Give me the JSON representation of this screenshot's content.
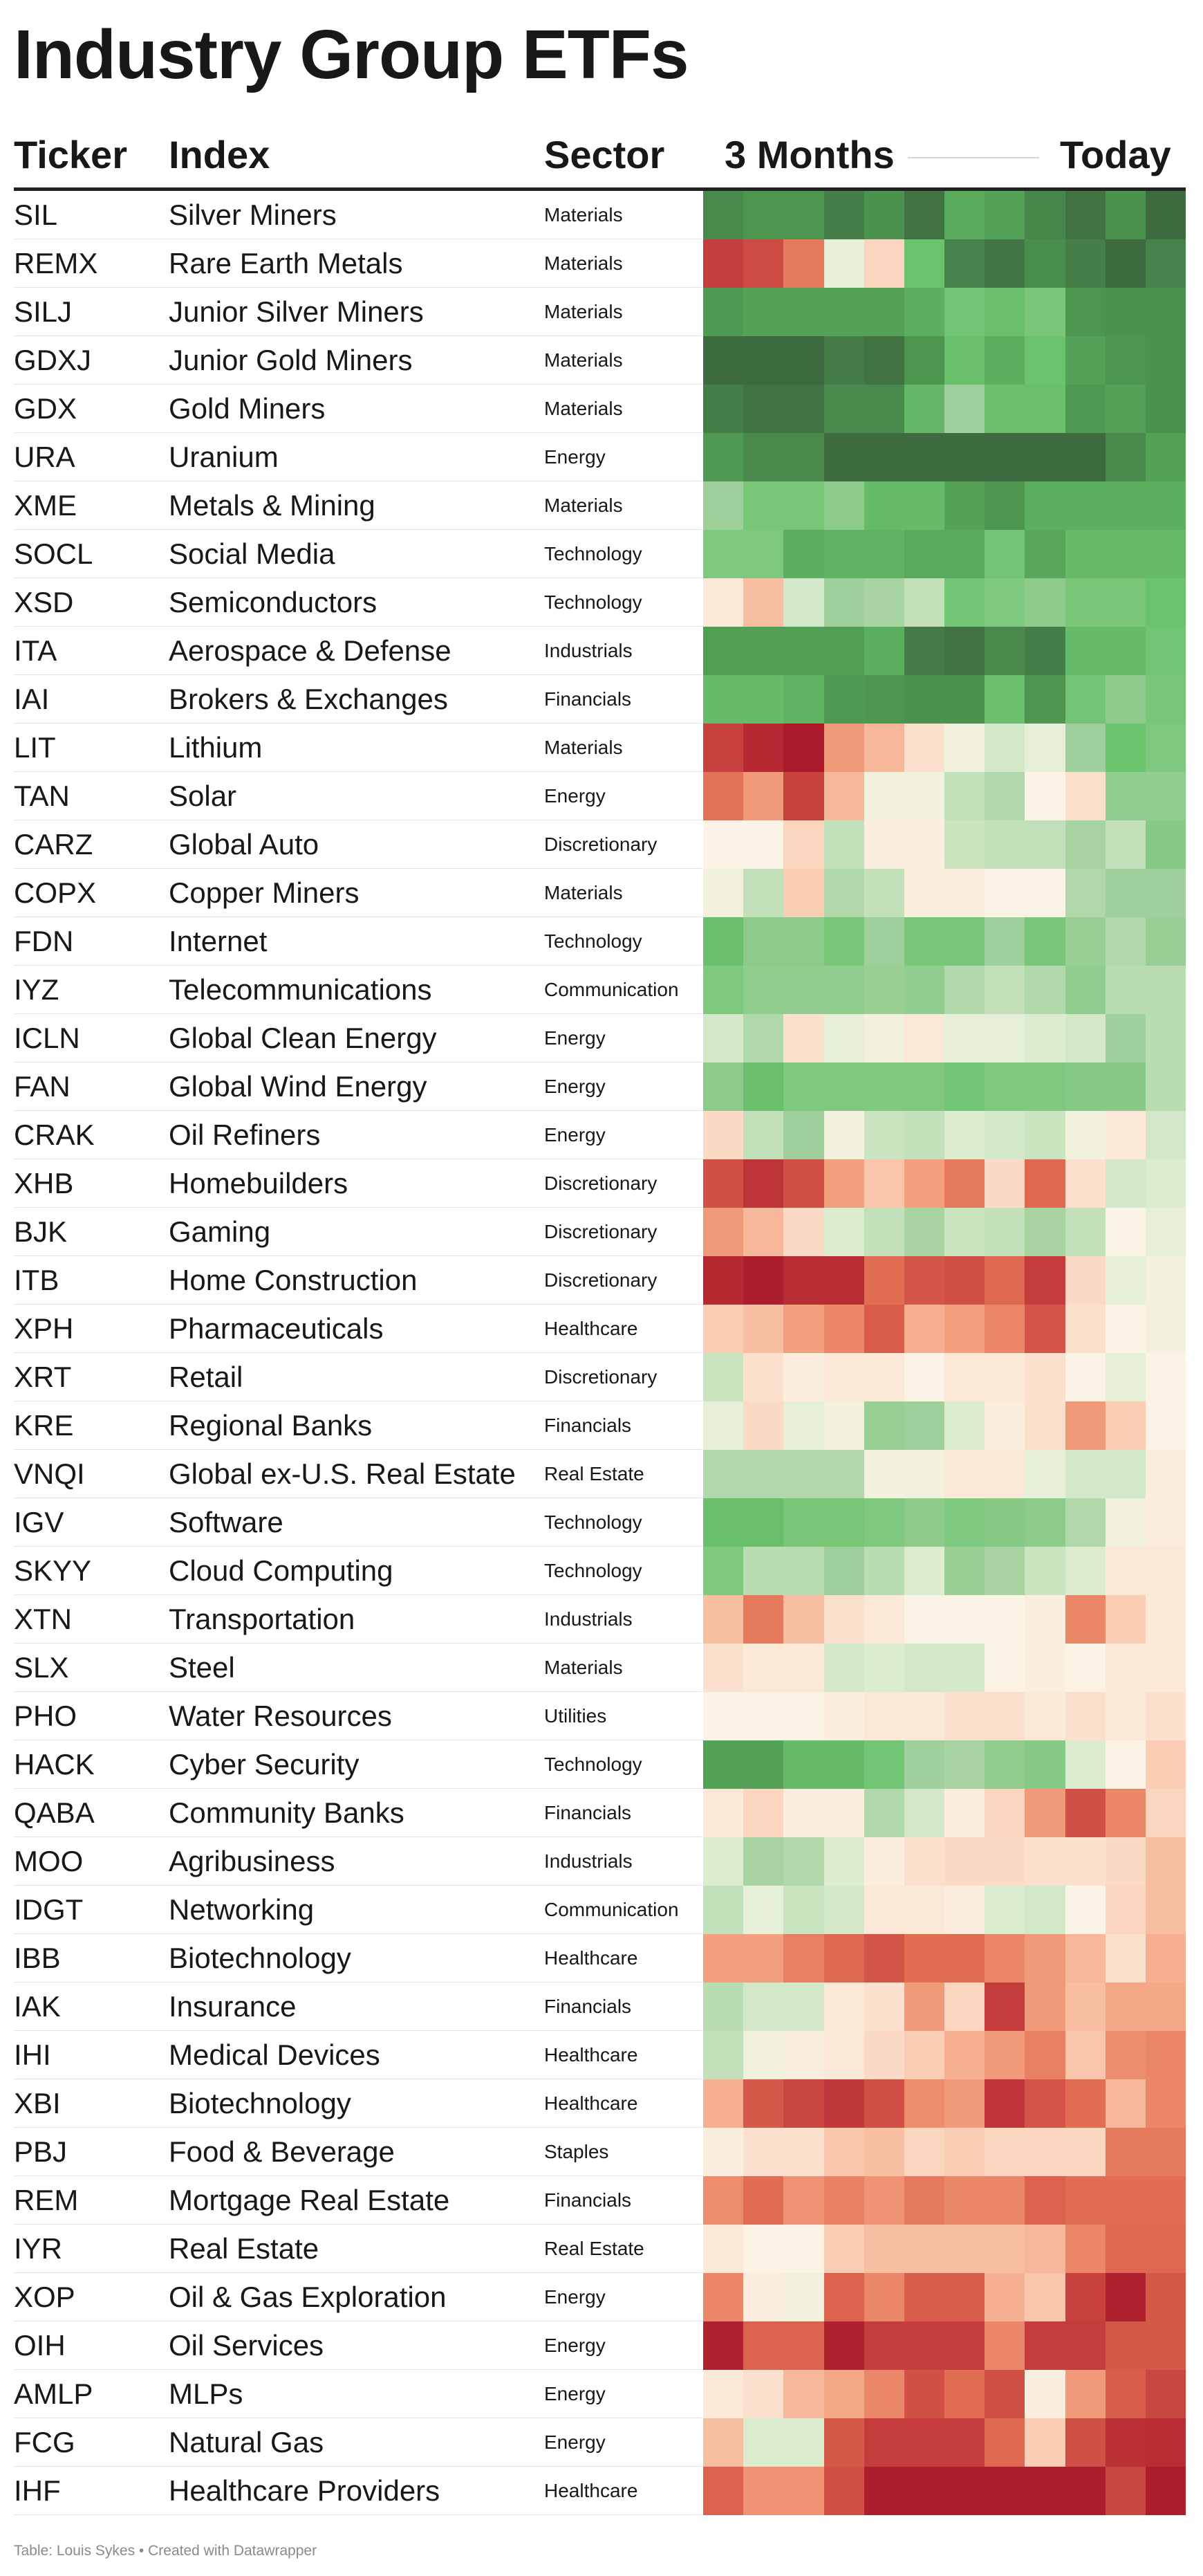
{
  "title": "Industry Group ETFs",
  "headers": {
    "ticker": "Ticker",
    "index": "Index",
    "sector": "Sector",
    "period_start": "3 Months",
    "period_end": "Today"
  },
  "footer": "Table: Louis Sykes • Created with Datawrapper",
  "chart_data": {
    "type": "heatmap",
    "title": "Industry Group ETFs",
    "columns": [
      "Ticker",
      "Index",
      "Sector",
      "3 Months → Today"
    ],
    "color_scale": {
      "low": "#b01a2d",
      "mid": "#fbf4e6",
      "high": "#3e6a3f"
    },
    "periods": 12,
    "rows": [
      {
        "ticker": "SIL",
        "index": "Silver Miners",
        "sector": "Materials",
        "values": [
          -3.2,
          -2.9,
          -2.9,
          -3.5,
          -3.0,
          -3.8,
          -2.4,
          -2.6,
          -3.3,
          -3.8,
          -3.0,
          -4.0
        ]
      },
      {
        "ticker": "REMX",
        "index": "Rare Earth Metals",
        "sector": "Materials",
        "values": [
          3.0,
          2.7,
          1.8,
          -0.2,
          0.5,
          -1.8,
          -3.4,
          -3.7,
          -3.1,
          -3.5,
          -4.0,
          -3.4
        ]
      },
      {
        "ticker": "SILJ",
        "index": "Junior Silver Miners",
        "sector": "Materials",
        "values": [
          -2.8,
          -2.6,
          -2.6,
          -2.6,
          -2.6,
          -2.3,
          -1.7,
          -1.9,
          -1.6,
          -2.9,
          -3.0,
          -3.0
        ]
      },
      {
        "ticker": "GDXJ",
        "index": "Junior Gold Miners",
        "sector": "Materials",
        "values": [
          -4.0,
          -4.0,
          -4.0,
          -3.6,
          -3.8,
          -2.9,
          -1.9,
          -2.3,
          -1.8,
          -2.6,
          -2.9,
          -3.0
        ]
      },
      {
        "ticker": "GDX",
        "index": "Gold Miners",
        "sector": "Materials",
        "values": [
          -3.5,
          -3.8,
          -3.8,
          -3.2,
          -3.2,
          -2.1,
          -1.0,
          -1.9,
          -1.9,
          -2.8,
          -2.6,
          -3.0
        ]
      },
      {
        "ticker": "URA",
        "index": "Uranium",
        "sector": "Energy",
        "values": [
          -2.8,
          -3.2,
          -3.2,
          -4.0,
          -4.0,
          -4.0,
          -4.0,
          -4.0,
          -4.0,
          -4.0,
          -3.2,
          -2.6
        ]
      },
      {
        "ticker": "XME",
        "index": "Metals & Mining",
        "sector": "Materials",
        "values": [
          -1.0,
          -1.6,
          -1.6,
          -1.3,
          -2.0,
          -2.0,
          -2.6,
          -2.9,
          -2.3,
          -2.3,
          -2.3,
          -2.3
        ]
      },
      {
        "ticker": "SOCL",
        "index": "Social Media",
        "sector": "Technology",
        "values": [
          -1.5,
          -1.5,
          -2.3,
          -2.2,
          -2.2,
          -2.4,
          -2.4,
          -1.7,
          -2.5,
          -2.0,
          -2.0,
          -2.0
        ]
      },
      {
        "ticker": "XSD",
        "index": "Semiconductors",
        "sector": "Technology",
        "values": [
          0.2,
          0.8,
          -0.4,
          -1.0,
          -0.9,
          -0.6,
          -1.7,
          -1.5,
          -1.3,
          -1.6,
          -1.6,
          -1.8
        ]
      },
      {
        "ticker": "ITA",
        "index": "Aerospace & Defense",
        "sector": "Industrials",
        "values": [
          -2.7,
          -2.7,
          -2.7,
          -2.7,
          -2.3,
          -3.6,
          -3.8,
          -3.2,
          -3.5,
          -2.0,
          -2.0,
          -1.7
        ]
      },
      {
        "ticker": "IAI",
        "index": "Brokers & Exchanges",
        "sector": "Financials",
        "values": [
          -2.0,
          -2.0,
          -2.2,
          -2.8,
          -2.9,
          -3.0,
          -3.0,
          -1.9,
          -2.9,
          -1.7,
          -1.3,
          -1.6
        ]
      },
      {
        "ticker": "LIT",
        "index": "Lithium",
        "sector": "Materials",
        "values": [
          2.9,
          3.5,
          3.9,
          1.3,
          0.9,
          0.3,
          -0.1,
          -0.4,
          -0.2,
          -1.0,
          -1.8,
          -1.5
        ]
      },
      {
        "ticker": "TAN",
        "index": "Solar",
        "sector": "Energy",
        "values": [
          1.9,
          1.3,
          2.9,
          0.9,
          -0.1,
          -0.1,
          -0.6,
          -0.8,
          0.0,
          0.3,
          -1.2,
          -1.2
        ]
      },
      {
        "ticker": "CARZ",
        "index": "Global Auto",
        "sector": "Discretionary",
        "values": [
          0.0,
          0.0,
          0.5,
          -0.6,
          0.1,
          0.1,
          -0.5,
          -0.6,
          -0.6,
          -0.9,
          -0.6,
          -1.4
        ]
      },
      {
        "ticker": "COPX",
        "index": "Copper Miners",
        "sector": "Materials",
        "values": [
          -0.1,
          -0.6,
          0.6,
          -0.8,
          -0.6,
          0.1,
          0.1,
          0.0,
          0.0,
          -0.8,
          -1.0,
          -1.0
        ]
      },
      {
        "ticker": "FDN",
        "index": "Internet",
        "sector": "Technology",
        "values": [
          -1.9,
          -1.3,
          -1.3,
          -1.6,
          -1.0,
          -1.6,
          -1.6,
          -1.0,
          -1.6,
          -1.1,
          -0.8,
          -1.1
        ]
      },
      {
        "ticker": "IYZ",
        "index": "Telecommunications",
        "sector": "Communication",
        "values": [
          -1.5,
          -1.2,
          -1.2,
          -1.2,
          -1.1,
          -1.2,
          -0.8,
          -0.6,
          -0.8,
          -1.2,
          -0.7,
          -0.7
        ]
      },
      {
        "ticker": "ICLN",
        "index": "Global Clean Energy",
        "sector": "Energy",
        "values": [
          -0.4,
          -0.8,
          0.3,
          -0.2,
          -0.1,
          0.2,
          -0.2,
          -0.2,
          -0.3,
          -0.4,
          -1.0,
          -0.7
        ]
      },
      {
        "ticker": "FAN",
        "index": "Global Wind Energy",
        "sector": "Energy",
        "values": [
          -1.3,
          -1.9,
          -1.5,
          -1.5,
          -1.5,
          -1.5,
          -1.7,
          -1.5,
          -1.5,
          -1.4,
          -1.4,
          -0.7
        ]
      },
      {
        "ticker": "CRAK",
        "index": "Oil Refiners",
        "sector": "Energy",
        "values": [
          0.4,
          -0.6,
          -1.0,
          -0.1,
          -0.5,
          -0.6,
          -0.3,
          -0.4,
          -0.5,
          -0.1,
          0.2,
          -0.4
        ]
      },
      {
        "ticker": "XHB",
        "index": "Homebuilders",
        "sector": "Discretionary",
        "values": [
          2.6,
          3.2,
          2.6,
          1.2,
          0.7,
          1.2,
          1.8,
          0.4,
          2.1,
          0.3,
          -0.4,
          -0.3
        ]
      },
      {
        "ticker": "BJK",
        "index": "Gaming",
        "sector": "Discretionary",
        "values": [
          1.3,
          0.9,
          0.4,
          -0.3,
          -0.6,
          -0.9,
          -0.5,
          -0.6,
          -0.9,
          -0.6,
          0.0,
          -0.2
        ]
      },
      {
        "ticker": "ITB",
        "index": "Home Construction",
        "sector": "Discretionary",
        "values": [
          3.5,
          3.8,
          3.4,
          3.4,
          2.0,
          2.5,
          2.6,
          2.1,
          3.0,
          0.4,
          -0.2,
          -0.1
        ]
      },
      {
        "ticker": "XPH",
        "index": "Pharmaceuticals",
        "sector": "Healthcare",
        "values": [
          0.6,
          0.8,
          1.2,
          1.6,
          2.3,
          1.0,
          1.2,
          1.6,
          2.5,
          0.3,
          0.0,
          -0.1
        ]
      },
      {
        "ticker": "XRT",
        "index": "Retail",
        "sector": "Discretionary",
        "values": [
          -0.5,
          0.3,
          0.1,
          0.2,
          0.2,
          0.0,
          0.2,
          0.2,
          0.3,
          0.0,
          -0.2,
          0.0
        ]
      },
      {
        "ticker": "KRE",
        "index": "Regional Banks",
        "sector": "Financials",
        "values": [
          -0.2,
          0.4,
          -0.2,
          -0.1,
          -1.1,
          -1.0,
          -0.3,
          0.1,
          0.3,
          1.3,
          0.6,
          0.0
        ]
      },
      {
        "ticker": "VNQI",
        "index": "Global ex-U.S. Real Estate",
        "sector": "Real Estate",
        "values": [
          -0.8,
          -0.8,
          -0.8,
          -0.8,
          -0.1,
          -0.1,
          0.2,
          0.2,
          -0.2,
          -0.4,
          -0.4,
          0.1
        ]
      },
      {
        "ticker": "IGV",
        "index": "Software",
        "sector": "Technology",
        "values": [
          -1.9,
          -1.9,
          -1.6,
          -1.6,
          -1.5,
          -1.3,
          -1.5,
          -1.4,
          -1.3,
          -0.8,
          -0.1,
          0.1
        ]
      },
      {
        "ticker": "SKYY",
        "index": "Cloud Computing",
        "sector": "Technology",
        "values": [
          -1.5,
          -0.7,
          -0.7,
          -1.0,
          -0.7,
          -0.3,
          -1.1,
          -0.9,
          -0.5,
          -0.3,
          0.2,
          0.2
        ]
      },
      {
        "ticker": "XTN",
        "index": "Transportation",
        "sector": "Industrials",
        "values": [
          0.8,
          1.8,
          0.8,
          0.3,
          0.2,
          0.0,
          0.0,
          0.0,
          0.1,
          1.6,
          0.6,
          0.2
        ]
      },
      {
        "ticker": "SLX",
        "index": "Steel",
        "sector": "Materials",
        "values": [
          0.3,
          0.2,
          0.2,
          -0.4,
          -0.3,
          -0.4,
          -0.4,
          0.0,
          0.1,
          0.0,
          0.2,
          0.2
        ]
      },
      {
        "ticker": "PHO",
        "index": "Water Resources",
        "sector": "Utilities",
        "values": [
          0.0,
          0.0,
          0.0,
          0.1,
          0.2,
          0.2,
          0.3,
          0.3,
          0.2,
          0.3,
          0.2,
          0.3
        ]
      },
      {
        "ticker": "HACK",
        "index": "Cyber Security",
        "sector": "Technology",
        "values": [
          -2.6,
          -2.6,
          -2.0,
          -2.0,
          -1.7,
          -1.0,
          -0.9,
          -1.2,
          -1.4,
          -0.3,
          0.0,
          0.6
        ]
      },
      {
        "ticker": "QABA",
        "index": "Community Banks",
        "sector": "Financials",
        "values": [
          0.2,
          0.5,
          0.1,
          0.1,
          -0.8,
          -0.4,
          0.1,
          0.5,
          1.3,
          2.6,
          1.6,
          0.5
        ]
      },
      {
        "ticker": "MOO",
        "index": "Agribusiness",
        "sector": "Industrials",
        "values": [
          -0.3,
          -0.9,
          -0.8,
          -0.3,
          0.1,
          0.3,
          0.4,
          0.4,
          0.3,
          0.3,
          0.4,
          0.8
        ]
      },
      {
        "ticker": "IDGT",
        "index": "Networking",
        "sector": "Communication",
        "values": [
          -0.6,
          -0.2,
          -0.5,
          -0.4,
          0.2,
          0.2,
          0.1,
          -0.3,
          -0.4,
          0.0,
          0.5,
          0.8
        ]
      },
      {
        "ticker": "IBB",
        "index": "Biotechnology",
        "sector": "Healthcare",
        "values": [
          1.2,
          1.2,
          1.7,
          2.1,
          2.5,
          2.0,
          2.0,
          1.6,
          1.3,
          0.9,
          0.3,
          1.0
        ]
      },
      {
        "ticker": "IAK",
        "index": "Insurance",
        "sector": "Financials",
        "values": [
          -0.7,
          -0.4,
          -0.4,
          0.2,
          0.3,
          1.3,
          0.5,
          3.0,
          1.3,
          0.8,
          1.1,
          1.1
        ]
      },
      {
        "ticker": "IHI",
        "index": "Medical Devices",
        "sector": "Healthcare",
        "values": [
          -0.6,
          -0.1,
          0.1,
          0.2,
          0.4,
          0.6,
          1.0,
          1.3,
          1.7,
          0.7,
          1.5,
          1.6
        ]
      },
      {
        "ticker": "XBI",
        "index": "Biotechnology",
        "sector": "Healthcare",
        "values": [
          1.0,
          2.4,
          2.8,
          3.1,
          2.6,
          1.5,
          1.3,
          3.2,
          2.5,
          2.0,
          0.9,
          1.6
        ]
      },
      {
        "ticker": "PBJ",
        "index": "Food & Beverage",
        "sector": "Staples",
        "values": [
          0.1,
          0.3,
          0.3,
          0.7,
          0.8,
          0.5,
          0.6,
          0.5,
          0.5,
          0.5,
          1.8,
          1.8
        ]
      },
      {
        "ticker": "REM",
        "index": "Mortgage Real Estate",
        "sector": "Financials",
        "values": [
          1.5,
          2.0,
          1.4,
          1.7,
          1.4,
          1.8,
          1.6,
          1.6,
          2.2,
          2.0,
          2.0,
          2.0
        ]
      },
      {
        "ticker": "IYR",
        "index": "Real Estate",
        "sector": "Real Estate",
        "values": [
          0.2,
          0.0,
          0.0,
          0.6,
          0.8,
          0.8,
          0.8,
          0.8,
          0.9,
          1.6,
          2.1,
          2.1
        ]
      },
      {
        "ticker": "XOP",
        "index": "Oil & Gas Exploration",
        "sector": "Energy",
        "values": [
          1.6,
          0.1,
          -0.1,
          2.2,
          1.6,
          2.3,
          2.3,
          1.0,
          0.7,
          2.9,
          3.7,
          2.4
        ]
      },
      {
        "ticker": "OIH",
        "index": "Oil Services",
        "sector": "Energy",
        "values": [
          3.7,
          2.2,
          2.2,
          3.7,
          3.0,
          3.0,
          3.0,
          1.6,
          3.0,
          3.0,
          2.4,
          2.4
        ]
      },
      {
        "ticker": "AMLP",
        "index": "MLPs",
        "sector": "Energy",
        "values": [
          0.2,
          0.3,
          0.9,
          1.1,
          1.6,
          2.6,
          2.0,
          2.6,
          0.1,
          1.3,
          2.3,
          2.8
        ]
      },
      {
        "ticker": "FCG",
        "index": "Natural Gas",
        "sector": "Energy",
        "values": [
          0.8,
          -0.3,
          -0.3,
          2.4,
          3.0,
          3.0,
          3.0,
          2.1,
          0.6,
          2.6,
          3.3,
          3.4
        ]
      },
      {
        "ticker": "IHF",
        "index": "Healthcare Providers",
        "sector": "Healthcare",
        "values": [
          2.2,
          1.4,
          1.4,
          2.6,
          3.8,
          3.8,
          3.8,
          3.8,
          3.8,
          3.8,
          2.8,
          3.8
        ]
      }
    ]
  }
}
